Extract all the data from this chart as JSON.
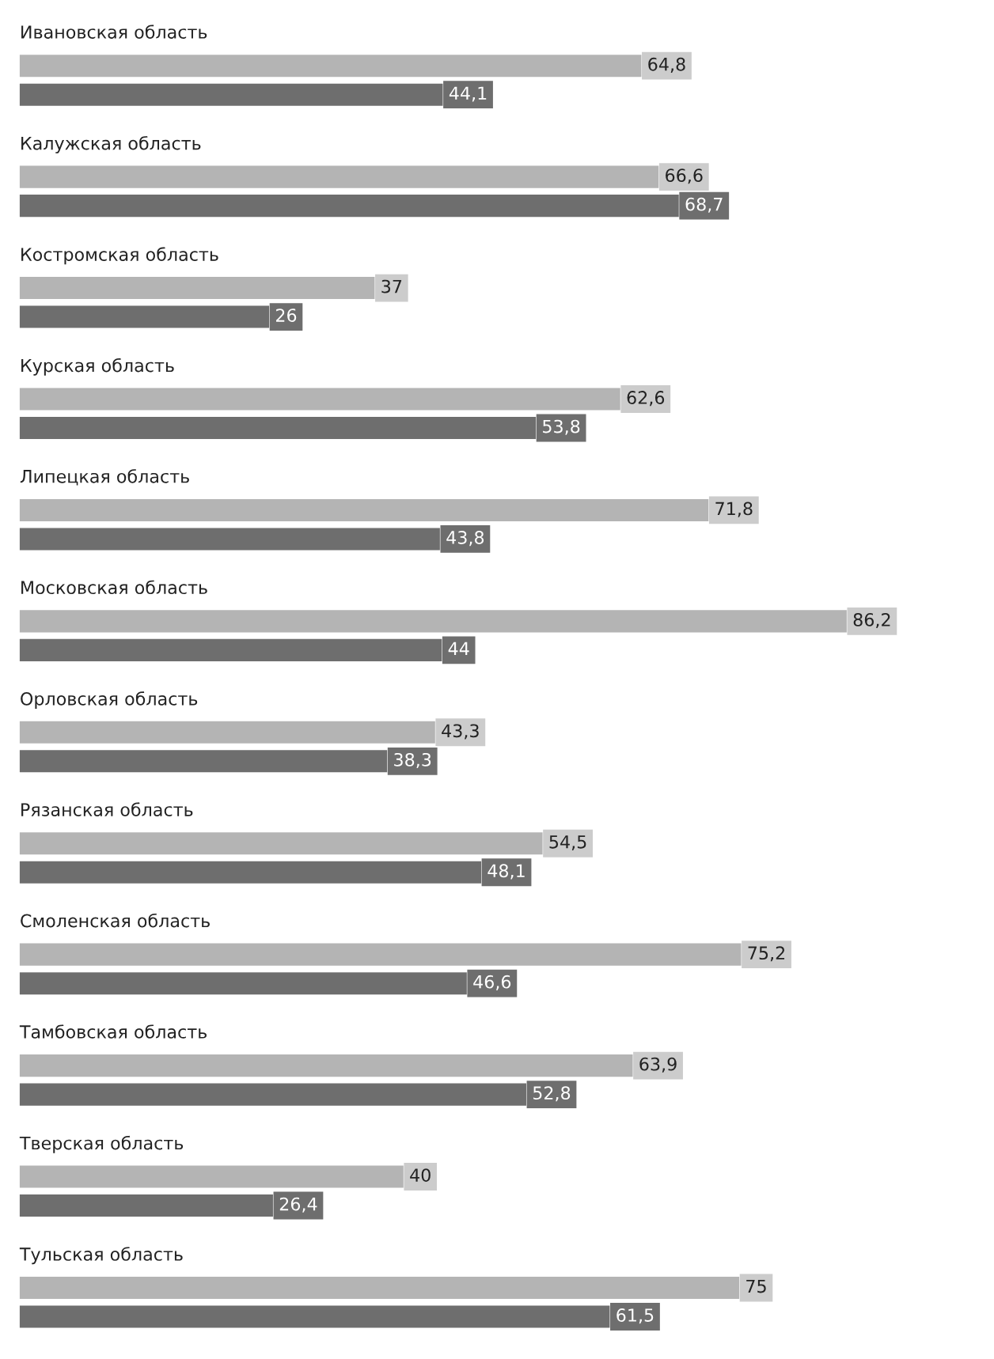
{
  "chart_data": {
    "type": "bar",
    "orientation": "horizontal",
    "categories": [
      "Ивановская область",
      "Калужская область",
      "Костромская область",
      "Курская область",
      "Липецкая область",
      "Московская область",
      "Орловская область",
      "Рязанская область",
      "Смоленская область",
      "Тамбовская область",
      "Тверская область",
      "Тульская область"
    ],
    "series": [
      {
        "color": "#b4b4b4",
        "values": [
          64.8,
          66.6,
          37,
          62.6,
          71.8,
          86.2,
          43.3,
          54.5,
          75.2,
          63.9,
          40,
          75
        ],
        "value_labels": [
          "64,8",
          "66,6",
          "37",
          "62,6",
          "71,8",
          "86,2",
          "43,3",
          "54,5",
          "75,2",
          "63,9",
          "40",
          "75"
        ]
      },
      {
        "color": "#6e6e6e",
        "values": [
          44.1,
          68.7,
          26,
          53.8,
          43.8,
          44,
          38.3,
          48.1,
          46.6,
          52.8,
          26.4,
          61.5
        ],
        "value_labels": [
          "44,1",
          "68,7",
          "26",
          "53,8",
          "43,8",
          "44",
          "38,3",
          "48,1",
          "46,6",
          "52,8",
          "26,4",
          "61,5"
        ]
      }
    ]
  }
}
